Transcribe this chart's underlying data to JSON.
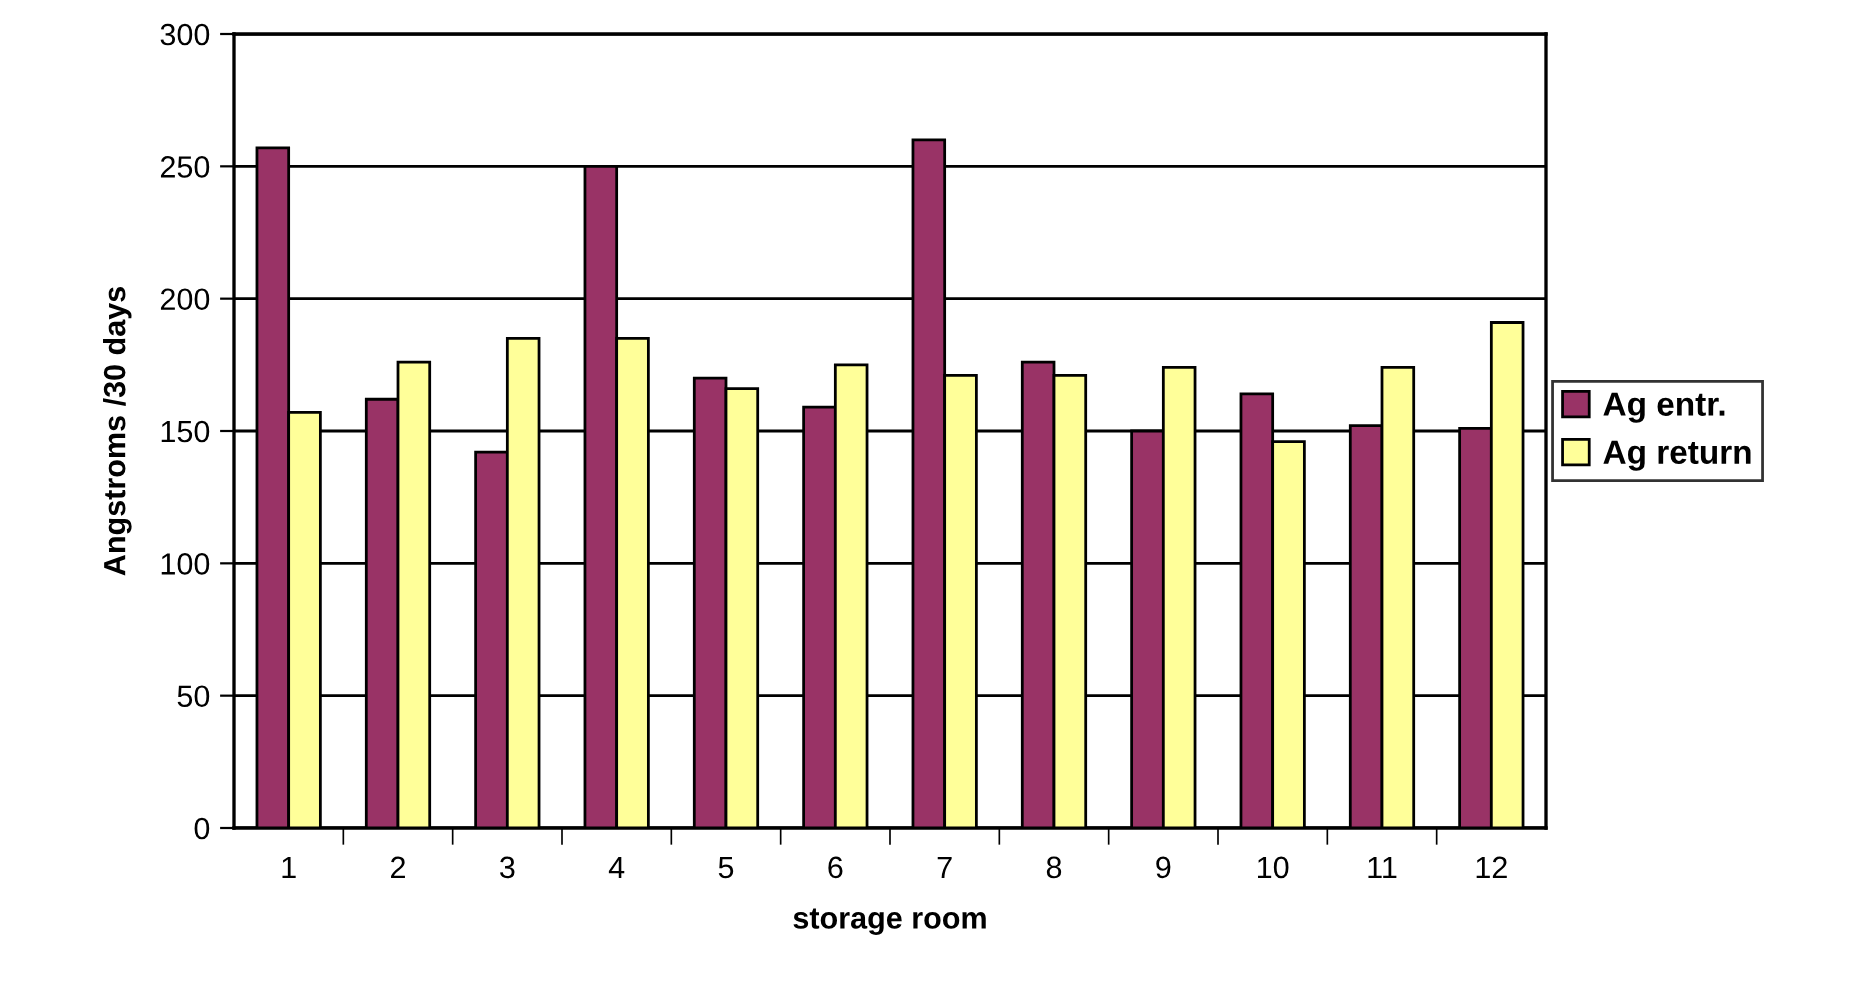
{
  "chart_data": {
    "type": "bar",
    "xlabel": "storage room",
    "ylabel": "Angstroms /30 days",
    "categories": [
      "1",
      "2",
      "3",
      "4",
      "5",
      "6",
      "7",
      "8",
      "9",
      "10",
      "11",
      "12"
    ],
    "series": [
      {
        "name": "Ag entr.",
        "color": "#993366",
        "values": [
          257,
          162,
          142,
          250,
          170,
          159,
          260,
          176,
          150,
          164,
          152,
          151
        ]
      },
      {
        "name": "Ag return",
        "color": "#ffff99",
        "values": [
          157,
          176,
          185,
          185,
          166,
          175,
          171,
          171,
          174,
          146,
          174,
          191
        ]
      }
    ],
    "ylim": [
      0,
      300
    ],
    "yticks": [
      0,
      50,
      100,
      150,
      200,
      250,
      300
    ],
    "grid": "y",
    "legend": "right"
  }
}
